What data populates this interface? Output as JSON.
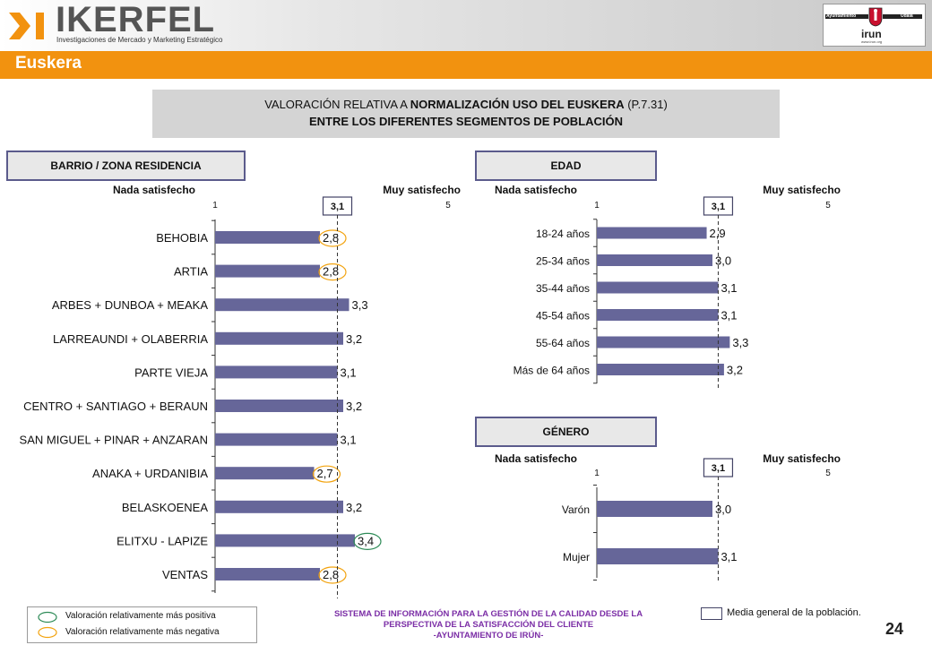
{
  "brand": {
    "name": "IKERFEL",
    "tagline": "Investigaciones de Mercado y Marketing Estratégico",
    "client_logo": {
      "left_label": "Ayuntamiento",
      "right_label": "Udala",
      "word": "irun",
      "url": "www.irun.org"
    }
  },
  "section": {
    "title": "Euskera"
  },
  "main_title": {
    "line1_prefix": "VALORACIÓN RELATIVA A ",
    "line1_bold": "NORMALIZACIÓN USO DEL EUSKERA",
    "line1_suffix": " (P.7.31)",
    "line2": "ENTRE LOS DIFERENTES SEGMENTOS DE POBLACIÓN"
  },
  "colors": {
    "bar": "#666699",
    "mean_line": "#333333",
    "positive_marker": "#2e8b57",
    "negative_marker": "#f2a30f",
    "panel_border": "#5b5b8c",
    "accent": "#f2920f"
  },
  "panels": {
    "barrio": {
      "header": "BARRIO / ZONA RESIDENCIA"
    },
    "edad": {
      "header": "EDAD"
    },
    "genero": {
      "header": "GÉNERO"
    }
  },
  "scale_labels": {
    "low": "Nada satisfecho",
    "high": "Muy satisfecho"
  },
  "chart_data": [
    {
      "type": "bar",
      "orientation": "horizontal",
      "title": "BARRIO / ZONA RESIDENCIA",
      "xlim": [
        1,
        5
      ],
      "tick_labels": [
        "1",
        "5"
      ],
      "mean": 3.1,
      "mean_label": "3,1",
      "categories": [
        "BEHOBIA",
        "ARTIA",
        "ARBES + DUNBOA + MEAKA",
        "LARREAUNDI + OLABERRIA",
        "PARTE VIEJA",
        "CENTRO + SANTIAGO + BERAUN",
        "SAN MIGUEL + PINAR + ANZARAN",
        "ANAKA + URDANIBIA",
        "BELASKOENEA",
        "ELITXU - LAPIZE",
        "VENTAS"
      ],
      "values": [
        2.8,
        2.8,
        3.3,
        3.2,
        3.1,
        3.2,
        3.1,
        2.7,
        3.2,
        3.4,
        2.8
      ],
      "labels": [
        "2,8",
        "2,8",
        "3,3",
        "3,2",
        "3,1",
        "3,2",
        "3,1",
        "2,7",
        "3,2",
        "3,4",
        "2,8"
      ],
      "highlight": [
        "negative",
        "negative",
        "",
        "",
        "",
        "",
        "",
        "negative",
        "",
        "positive",
        "negative"
      ]
    },
    {
      "type": "bar",
      "orientation": "horizontal",
      "title": "EDAD",
      "xlim": [
        1,
        5
      ],
      "tick_labels": [
        "1",
        "5"
      ],
      "mean": 3.1,
      "mean_label": "3,1",
      "categories": [
        "18-24 años",
        "25-34 años",
        "35-44 años",
        "45-54 años",
        "55-64 años",
        "Más de 64 años"
      ],
      "values": [
        2.9,
        3.0,
        3.1,
        3.1,
        3.3,
        3.2
      ],
      "labels": [
        "2,9",
        "3,0",
        "3,1",
        "3,1",
        "3,3",
        "3,2"
      ],
      "highlight": [
        "",
        "",
        "",
        "",
        "",
        ""
      ]
    },
    {
      "type": "bar",
      "orientation": "horizontal",
      "title": "GÉNERO",
      "xlim": [
        1,
        5
      ],
      "tick_labels": [
        "1",
        "5"
      ],
      "mean": 3.1,
      "mean_label": "3,1",
      "categories": [
        "Varón",
        "Mujer"
      ],
      "values": [
        3.0,
        3.1
      ],
      "labels": [
        "3,0",
        "3,1"
      ],
      "highlight": [
        "",
        ""
      ]
    }
  ],
  "legend": {
    "positive": "Valoración relativamente más positiva",
    "negative": "Valoración relativamente más negativa",
    "mean": "Media general de la población."
  },
  "footer": {
    "line1": "SISTEMA DE INFORMACIÓN PARA LA GESTIÓN DE LA CALIDAD DESDE LA",
    "line2": "PERSPECTIVA DE LA SATISFACCIÓN DEL CLIENTE",
    "line3": "-AYUNTAMIENTO DE IRÚN-"
  },
  "page_number": "24"
}
